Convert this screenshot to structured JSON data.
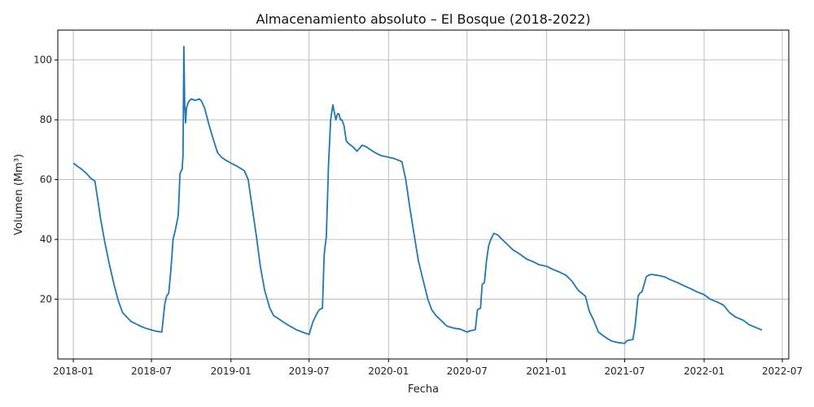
{
  "chart_data": {
    "type": "line",
    "title": "Almacenamiento absoluto – El Bosque (2018-2022)",
    "xlabel": "Fecha",
    "ylabel": "Volumen (Mm³)",
    "xlim": [
      "2017-11-26",
      "2022-07-16"
    ],
    "ylim": [
      0,
      110
    ],
    "grid": true,
    "line_color": "#1f77b4",
    "x_ticks": [
      {
        "date": "2018-01-01",
        "label": "2018-01"
      },
      {
        "date": "2018-07-01",
        "label": "2018-07"
      },
      {
        "date": "2019-01-01",
        "label": "2019-01"
      },
      {
        "date": "2019-07-01",
        "label": "2019-07"
      },
      {
        "date": "2020-01-01",
        "label": "2020-01"
      },
      {
        "date": "2020-07-01",
        "label": "2020-07"
      },
      {
        "date": "2021-01-01",
        "label": "2021-01"
      },
      {
        "date": "2021-07-01",
        "label": "2021-07"
      },
      {
        "date": "2022-01-01",
        "label": "2022-01"
      },
      {
        "date": "2022-07-01",
        "label": "2022-07"
      }
    ],
    "y_ticks": [
      {
        "value": 20,
        "label": "20"
      },
      {
        "value": 40,
        "label": "40"
      },
      {
        "value": 60,
        "label": "60"
      },
      {
        "value": 80,
        "label": "80"
      },
      {
        "value": 100,
        "label": "100"
      }
    ],
    "series": [
      {
        "x": [
          "2018-01-01",
          "2018-01-10",
          "2018-01-20",
          "2018-02-01",
          "2018-02-10",
          "2018-02-20",
          "2018-03-01",
          "2018-03-05",
          "2018-03-15",
          "2018-03-25",
          "2018-04-05",
          "2018-04-15",
          "2018-04-25",
          "2018-05-05",
          "2018-05-15",
          "2018-06-01",
          "2018-06-15",
          "2018-07-01",
          "2018-07-15",
          "2018-07-25",
          "2018-08-01",
          "2018-08-05",
          "2018-08-10",
          "2018-08-15",
          "2018-08-20",
          "2018-08-25",
          "2018-09-01",
          "2018-09-05",
          "2018-09-10",
          "2018-09-12",
          "2018-09-14",
          "2018-09-16",
          "2018-09-18",
          "2018-09-20",
          "2018-09-25",
          "2018-10-01",
          "2018-10-10",
          "2018-10-20",
          "2018-10-25",
          "2018-11-01",
          "2018-11-10",
          "2018-11-20",
          "2018-12-01",
          "2018-12-10",
          "2018-12-20",
          "2019-01-01",
          "2019-01-15",
          "2019-02-01",
          "2019-02-10",
          "2019-02-20",
          "2019-03-01",
          "2019-03-10",
          "2019-03-20",
          "2019-04-01",
          "2019-04-10",
          "2019-04-20",
          "2019-05-01",
          "2019-05-15",
          "2019-06-01",
          "2019-06-15",
          "2019-07-01",
          "2019-07-10",
          "2019-07-20",
          "2019-07-25",
          "2019-08-01",
          "2019-08-05",
          "2019-08-10",
          "2019-08-15",
          "2019-08-20",
          "2019-08-25",
          "2019-09-01",
          "2019-09-05",
          "2019-09-08",
          "2019-09-12",
          "2019-09-15",
          "2019-09-20",
          "2019-09-25",
          "2019-10-01",
          "2019-10-10",
          "2019-10-20",
          "2019-11-01",
          "2019-11-10",
          "2019-11-20",
          "2019-12-01",
          "2019-12-15",
          "2020-01-01",
          "2020-01-15",
          "2020-02-01",
          "2020-02-10",
          "2020-02-20",
          "2020-03-01",
          "2020-03-10",
          "2020-03-20",
          "2020-04-01",
          "2020-04-10",
          "2020-04-20",
          "2020-05-01",
          "2020-05-15",
          "2020-06-01",
          "2020-06-15",
          "2020-07-01",
          "2020-07-10",
          "2020-07-20",
          "2020-07-25",
          "2020-08-01",
          "2020-08-05",
          "2020-08-10",
          "2020-08-15",
          "2020-08-20",
          "2020-08-25",
          "2020-09-01",
          "2020-09-10",
          "2020-09-20",
          "2020-10-01",
          "2020-10-15",
          "2020-11-01",
          "2020-11-15",
          "2020-12-01",
          "2020-12-15",
          "2021-01-01",
          "2021-01-15",
          "2021-02-01",
          "2021-02-15",
          "2021-03-01",
          "2021-03-15",
          "2021-04-01",
          "2021-04-10",
          "2021-04-20",
          "2021-05-01",
          "2021-05-10",
          "2021-05-20",
          "2021-06-01",
          "2021-06-15",
          "2021-07-01",
          "2021-07-05",
          "2021-07-10",
          "2021-07-20",
          "2021-07-25",
          "2021-08-01",
          "2021-08-05",
          "2021-08-10",
          "2021-08-20",
          "2021-08-25",
          "2021-09-01",
          "2021-09-15",
          "2021-10-01",
          "2021-10-15",
          "2021-11-01",
          "2021-11-15",
          "2021-12-01",
          "2021-12-15",
          "2022-01-01",
          "2022-01-15",
          "2022-02-01",
          "2022-02-15",
          "2022-03-01",
          "2022-03-15",
          "2022-04-01",
          "2022-04-15",
          "2022-05-01",
          "2022-05-15"
        ],
        "y": [
          65.5,
          64.5,
          63.5,
          62,
          60.5,
          59.5,
          51,
          47,
          39,
          32,
          25,
          19.5,
          15.5,
          14,
          12.5,
          11.3,
          10.4,
          9.7,
          9.2,
          9,
          18.5,
          21,
          22,
          30,
          40,
          43,
          48,
          62,
          63.5,
          68,
          104.5,
          85,
          79,
          84,
          86,
          87,
          86.5,
          87,
          86.2,
          84,
          79,
          74,
          69,
          67.5,
          66.5,
          65.5,
          64.5,
          63,
          60,
          50,
          41,
          31,
          23,
          17,
          14.5,
          13.6,
          12.5,
          11.2,
          9.8,
          9,
          8.2,
          12.5,
          15.5,
          16.5,
          17,
          35,
          41,
          65,
          80,
          85,
          80,
          82,
          82,
          80,
          80,
          78,
          73,
          72,
          71,
          69.5,
          71.5,
          71,
          70,
          69,
          68,
          67.5,
          67,
          66,
          60,
          50,
          41,
          33,
          27,
          20,
          16.5,
          14.5,
          13,
          11,
          10.3,
          10,
          9,
          9.5,
          9.8,
          16.5,
          17,
          25,
          25.5,
          33,
          38,
          40,
          42,
          41.5,
          40,
          38.5,
          36.5,
          35,
          33.5,
          32.5,
          31.5,
          31,
          30,
          29,
          28,
          26,
          23,
          21,
          16,
          13,
          9,
          8,
          7,
          6,
          5.5,
          5.2,
          6,
          6.3,
          6.5,
          11,
          21,
          22,
          22.5,
          27.5,
          28,
          28.3,
          28,
          27.5,
          26.5,
          25.5,
          24.5,
          23.5,
          22.5,
          21.5,
          20,
          19,
          18,
          15.5,
          14,
          13,
          11.5,
          10.5,
          9.7
        ]
      }
    ]
  }
}
